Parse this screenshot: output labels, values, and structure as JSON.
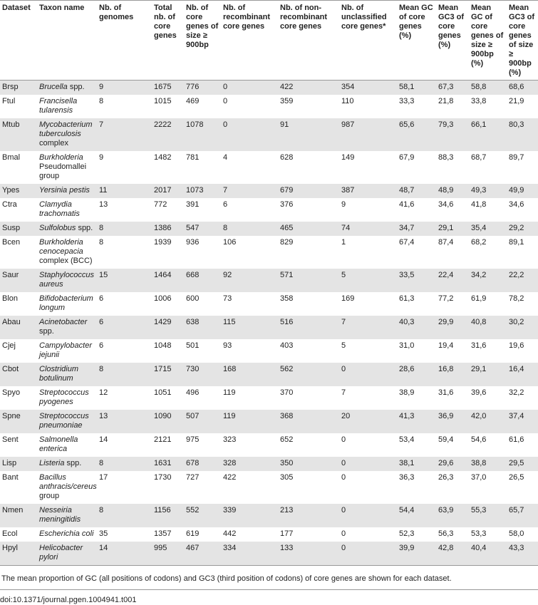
{
  "table": {
    "header": [
      "Dataset",
      "Taxon name",
      "Nb. of genomes",
      "Total nb. of core genes",
      "Nb. of core genes of size ≥ 900bp",
      "Nb. of recombinant core genes",
      "Nb. of non-recombinant core genes",
      "Nb. of unclassified core genes*",
      "Mean GC of core genes (%)",
      "Mean GC3 of core genes (%)",
      "Mean GC of core genes of size ≥ 900bp (%)",
      "Mean GC3 of core genes of size ≥ 900bp (%)"
    ],
    "rows": [
      [
        "Brsp",
        {
          "italic": "Brucella",
          "rest": "spp."
        },
        "9",
        "1675",
        "776",
        "0",
        "422",
        "354",
        "58,1",
        "67,3",
        "58,8",
        "68,6"
      ],
      [
        "Ftul",
        {
          "italic": "Francisella tularensis"
        },
        "8",
        "1015",
        "469",
        "0",
        "359",
        "110",
        "33,3",
        "21,8",
        "33,8",
        "21,9"
      ],
      [
        "Mtub",
        {
          "italic": "Mycobacterium tuberculosis",
          "rest": "complex"
        },
        "7",
        "2222",
        "1078",
        "0",
        "91",
        "987",
        "65,6",
        "79,3",
        "66,1",
        "80,3"
      ],
      [
        "Bmal",
        {
          "italic": "Burkholderia",
          "rest": "Pseudomallei group"
        },
        "9",
        "1482",
        "781",
        "4",
        "628",
        "149",
        "67,9",
        "88,3",
        "68,7",
        "89,7"
      ],
      [
        "Ypes",
        {
          "italic": "Yersinia pestis"
        },
        "11",
        "2017",
        "1073",
        "7",
        "679",
        "387",
        "48,7",
        "48,9",
        "49,3",
        "49,9"
      ],
      [
        "Ctra",
        {
          "italic": "Clamydia trachomatis"
        },
        "13",
        "772",
        "391",
        "6",
        "376",
        "9",
        "41,6",
        "34,6",
        "41,8",
        "34,6"
      ],
      [
        "Susp",
        {
          "italic": "Sulfolobus",
          "rest": "spp."
        },
        "8",
        "1386",
        "547",
        "8",
        "465",
        "74",
        "34,7",
        "29,1",
        "35,4",
        "29,2"
      ],
      [
        "Bcen",
        {
          "italic": "Burkholderia cenocepacia",
          "rest": "complex (BCC)"
        },
        "8",
        "1939",
        "936",
        "106",
        "829",
        "1",
        "67,4",
        "87,4",
        "68,2",
        "89,1"
      ],
      [
        "Saur",
        {
          "italic": "Staphylococcus aureus"
        },
        "15",
        "1464",
        "668",
        "92",
        "571",
        "5",
        "33,5",
        "22,4",
        "34,2",
        "22,2"
      ],
      [
        "Blon",
        {
          "italic": "Bifidobacterium longum"
        },
        "6",
        "1006",
        "600",
        "73",
        "358",
        "169",
        "61,3",
        "77,2",
        "61,9",
        "78,2"
      ],
      [
        "Abau",
        {
          "italic": "Acinetobacter",
          "rest": "spp."
        },
        "6",
        "1429",
        "638",
        "115",
        "516",
        "7",
        "40,3",
        "29,9",
        "40,8",
        "30,2"
      ],
      [
        "Cjej",
        {
          "italic": "Campylobacter jejunii"
        },
        "6",
        "1048",
        "501",
        "93",
        "403",
        "5",
        "31,0",
        "19,4",
        "31,6",
        "19,6"
      ],
      [
        "Cbot",
        {
          "italic": "Clostridium botulinum"
        },
        "8",
        "1715",
        "730",
        "168",
        "562",
        "0",
        "28,6",
        "16,8",
        "29,1",
        "16,4"
      ],
      [
        "Spyo",
        {
          "italic": "Streptococcus pyogenes"
        },
        "12",
        "1051",
        "496",
        "119",
        "370",
        "7",
        "38,9",
        "31,6",
        "39,6",
        "32,2"
      ],
      [
        "Spne",
        {
          "italic": "Streptococcus pneumoniae"
        },
        "13",
        "1090",
        "507",
        "119",
        "368",
        "20",
        "41,3",
        "36,9",
        "42,0",
        "37,4"
      ],
      [
        "Sent",
        {
          "italic": "Salmonella enterica"
        },
        "14",
        "2121",
        "975",
        "323",
        "652",
        "0",
        "53,4",
        "59,4",
        "54,6",
        "61,6"
      ],
      [
        "Lisp",
        {
          "italic": "Listeria",
          "rest": "spp."
        },
        "8",
        "1631",
        "678",
        "328",
        "350",
        "0",
        "38,1",
        "29,6",
        "38,8",
        "29,5"
      ],
      [
        "Bant",
        {
          "italic": "Bacillus anthracis/cereus",
          "rest": "group"
        },
        "17",
        "1730",
        "727",
        "422",
        "305",
        "0",
        "36,3",
        "26,3",
        "37,0",
        "26,5"
      ],
      [
        "Nmen",
        {
          "italic": "Nesseiria meningitidis"
        },
        "8",
        "1156",
        "552",
        "339",
        "213",
        "0",
        "54,4",
        "63,9",
        "55,3",
        "65,7"
      ],
      [
        "Ecol",
        {
          "italic": "Escherichia coli"
        },
        "35",
        "1357",
        "619",
        "442",
        "177",
        "0",
        "52,3",
        "56,3",
        "53,3",
        "58,0"
      ],
      [
        "Hpyl",
        {
          "italic": "Helicobacter pylori"
        },
        "14",
        "995",
        "467",
        "334",
        "133",
        "0",
        "39,9",
        "42,8",
        "40,4",
        "43,3"
      ]
    ]
  },
  "footnote": "The mean proportion of GC (all positions of codons) and GC3 (third position of codons) of core genes are shown for each dataset.",
  "doi": "doi:10.1371/journal.pgen.1004941.t001"
}
